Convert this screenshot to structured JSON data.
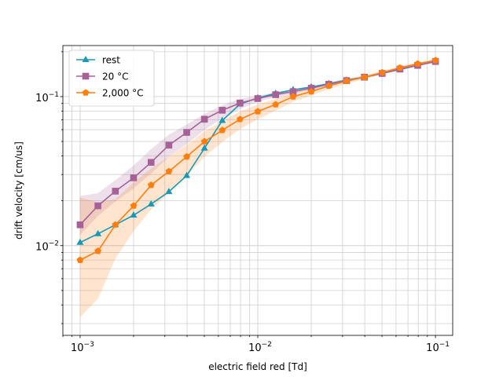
{
  "chart_data": {
    "type": "line",
    "title": "",
    "xlabel": "electric field red [Td]",
    "ylabel": "drift velocity [cm/us]",
    "xscale": "log",
    "yscale": "log",
    "xlim": [
      0.0008,
      0.125
    ],
    "ylim": [
      0.0025,
      0.22
    ],
    "grid": "major+minor",
    "legend_position": "top-left",
    "x_ticks": [
      {
        "value": 0.001,
        "base": "10",
        "exp": "−3"
      },
      {
        "value": 0.01,
        "base": "10",
        "exp": "−2"
      },
      {
        "value": 0.1,
        "base": "10",
        "exp": "−1"
      }
    ],
    "y_ticks": [
      {
        "value": 0.01,
        "base": "10",
        "exp": "−2"
      },
      {
        "value": 0.1,
        "base": "10",
        "exp": "−1"
      }
    ],
    "x": [
      0.001,
      0.00126,
      0.00158,
      0.002,
      0.00251,
      0.00316,
      0.00398,
      0.00501,
      0.00631,
      0.00794,
      0.01,
      0.0126,
      0.0158,
      0.02,
      0.0251,
      0.0316,
      0.0398,
      0.0501,
      0.0631,
      0.0794,
      0.1
    ],
    "series": [
      {
        "name": "rest",
        "color": "#1a99b6",
        "marker": "triangle",
        "values": [
          0.0105,
          0.012,
          0.0138,
          0.016,
          0.019,
          0.023,
          0.0295,
          0.045,
          0.069,
          0.089,
          0.098,
          0.105,
          0.111,
          0.116,
          0.122,
          0.129,
          0.135,
          0.143,
          0.152,
          0.162,
          0.172
        ],
        "band": null
      },
      {
        "name": "20 °C",
        "color": "#a66297",
        "marker": "square",
        "values": [
          0.0138,
          0.0185,
          0.0232,
          0.0285,
          0.0362,
          0.0472,
          0.0575,
          0.0705,
          0.081,
          0.0905,
          0.097,
          0.103,
          0.108,
          0.114,
          0.121,
          0.128,
          0.135,
          0.143,
          0.153,
          0.162,
          0.172
        ],
        "band": {
          "lower": [
            0.0118,
            0.0158,
            0.0198,
            0.0242,
            0.0305,
            0.0395,
            0.048,
            0.0598,
            0.0712,
            0.0825,
            0.0925,
            0.099,
            0.105,
            0.111,
            0.118,
            0.126,
            0.133,
            0.141,
            0.151,
            0.16,
            0.17
          ],
          "upper": [
            0.0215,
            0.0225,
            0.0275,
            0.0345,
            0.0445,
            0.0555,
            0.065,
            0.0765,
            0.0875,
            0.0965,
            0.101,
            0.107,
            0.111,
            0.117,
            0.124,
            0.131,
            0.138,
            0.146,
            0.156,
            0.164,
            0.174
          ]
        }
      },
      {
        "name": "2,000 °C",
        "color": "#ff7f0e",
        "marker": "pentagon",
        "values": [
          0.008,
          0.0092,
          0.0138,
          0.0185,
          0.0255,
          0.0315,
          0.0395,
          0.05,
          0.0595,
          0.0705,
          0.0795,
          0.0885,
          0.1,
          0.108,
          0.118,
          0.127,
          0.135,
          0.145,
          0.156,
          0.166,
          0.175
        ],
        "band": {
          "lower": [
            0.0033,
            0.0044,
            0.0082,
            0.0125,
            0.0175,
            0.0225,
            0.0295,
            0.0395,
            0.0495,
            0.0605,
            0.0705,
            0.0805,
            0.0925,
            0.102,
            0.112,
            0.122,
            0.131,
            0.141,
            0.152,
            0.163,
            0.172
          ],
          "upper": [
            0.021,
            0.0195,
            0.0205,
            0.0265,
            0.033,
            0.0395,
            0.0475,
            0.0585,
            0.0685,
            0.0795,
            0.0885,
            0.0965,
            0.107,
            0.114,
            0.124,
            0.132,
            0.139,
            0.149,
            0.16,
            0.169,
            0.178
          ]
        }
      }
    ]
  }
}
